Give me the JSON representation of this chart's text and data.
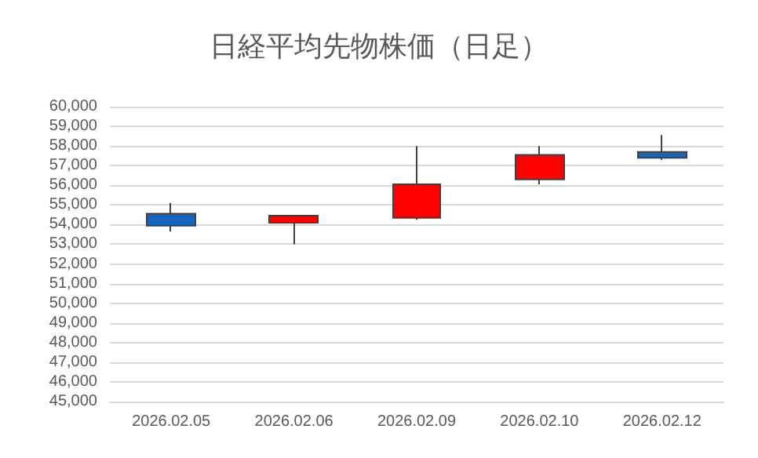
{
  "chart_data": {
    "type": "candlestick",
    "title": "日経平均先物株価（日足）",
    "categories": [
      "2026.02.05",
      "2026.02.06",
      "2026.02.09",
      "2026.02.10",
      "2026.02.12"
    ],
    "ohlc": [
      [
        54550,
        55100,
        53650,
        53950
      ],
      [
        54100,
        54450,
        53000,
        54450
      ],
      [
        54350,
        58000,
        54250,
        56050
      ],
      [
        56300,
        58000,
        56050,
        57550
      ],
      [
        57700,
        58550,
        57300,
        57400
      ]
    ],
    "colors": [
      "#1565c0",
      "#ff0000",
      "#ff0000",
      "#ff0000",
      "#1565c0"
    ],
    "ylim": [
      45000,
      60000
    ],
    "yticks": [
      {
        "value": 45000,
        "label": "45,000"
      },
      {
        "value": 46000,
        "label": "46,000"
      },
      {
        "value": 47000,
        "label": "47,000"
      },
      {
        "value": 48000,
        "label": "48,000"
      },
      {
        "value": 49000,
        "label": "49,000"
      },
      {
        "value": 50000,
        "label": "50,000"
      },
      {
        "value": 51000,
        "label": "51,000"
      },
      {
        "value": 52000,
        "label": "52,000"
      },
      {
        "value": 53000,
        "label": "53,000"
      },
      {
        "value": 54000,
        "label": "54,000"
      },
      {
        "value": 55000,
        "label": "55,000"
      },
      {
        "value": 56000,
        "label": "56,000"
      },
      {
        "value": 57000,
        "label": "57,000"
      },
      {
        "value": 58000,
        "label": "58,000"
      },
      {
        "value": 59000,
        "label": "59,000"
      },
      {
        "value": 60000,
        "label": "60,000"
      }
    ],
    "grid": "y"
  }
}
